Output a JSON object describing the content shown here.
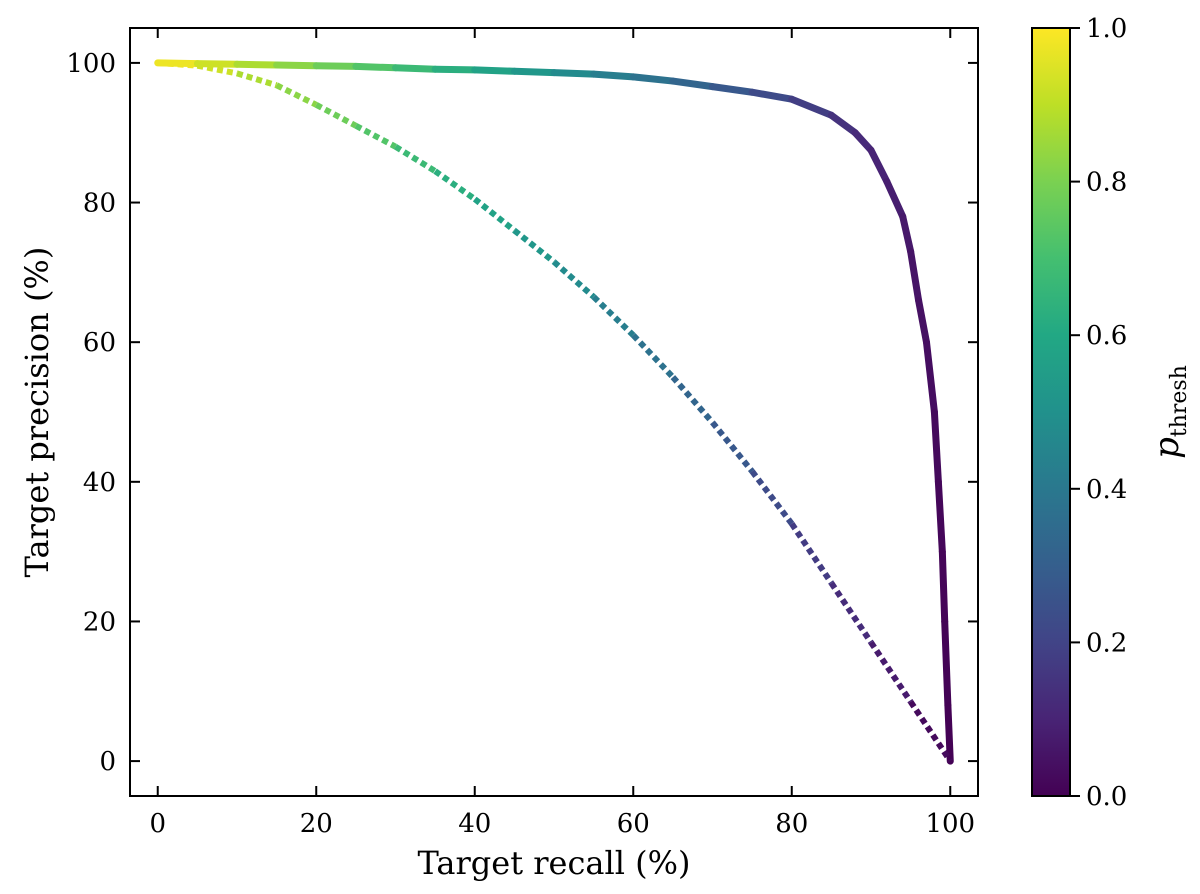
{
  "chart_data": {
    "type": "line",
    "xlabel": "Target recall (%)",
    "ylabel": "Target precision (%)",
    "xlim": [
      -3.5,
      103.5
    ],
    "ylim": [
      -5,
      105
    ],
    "xticks": [
      "0",
      "20",
      "40",
      "60",
      "80",
      "100"
    ],
    "yticks": [
      "0",
      "20",
      "40",
      "60",
      "80",
      "100"
    ],
    "grid": false,
    "colorbar": {
      "label": "p",
      "label_subscript": "thresh",
      "colormap": "viridis",
      "range": [
        0.0,
        1.0
      ],
      "ticks": [
        "0.0",
        "0.2",
        "0.4",
        "0.6",
        "0.8",
        "1.0"
      ]
    },
    "series": [
      {
        "style": "solid",
        "color_by": "threshold",
        "points": [
          {
            "threshold": 1.0,
            "x": 0,
            "y": 100
          },
          {
            "threshold": 0.95,
            "x": 5,
            "y": 99.9
          },
          {
            "threshold": 0.9,
            "x": 10,
            "y": 99.8
          },
          {
            "threshold": 0.85,
            "x": 15,
            "y": 99.7
          },
          {
            "threshold": 0.8,
            "x": 20,
            "y": 99.6
          },
          {
            "threshold": 0.75,
            "x": 25,
            "y": 99.5
          },
          {
            "threshold": 0.7,
            "x": 30,
            "y": 99.3
          },
          {
            "threshold": 0.65,
            "x": 35,
            "y": 99.1
          },
          {
            "threshold": 0.6,
            "x": 40,
            "y": 99.0
          },
          {
            "threshold": 0.55,
            "x": 45,
            "y": 98.8
          },
          {
            "threshold": 0.5,
            "x": 50,
            "y": 98.6
          },
          {
            "threshold": 0.45,
            "x": 55,
            "y": 98.4
          },
          {
            "threshold": 0.4,
            "x": 60,
            "y": 98.0
          },
          {
            "threshold": 0.35,
            "x": 65,
            "y": 97.4
          },
          {
            "threshold": 0.3,
            "x": 70,
            "y": 96.6
          },
          {
            "threshold": 0.25,
            "x": 75,
            "y": 95.8
          },
          {
            "threshold": 0.2,
            "x": 80,
            "y": 94.8
          },
          {
            "threshold": 0.16,
            "x": 85,
            "y": 92.5
          },
          {
            "threshold": 0.13,
            "x": 88,
            "y": 90.0
          },
          {
            "threshold": 0.11,
            "x": 90,
            "y": 87.5
          },
          {
            "threshold": 0.09,
            "x": 92,
            "y": 83.0
          },
          {
            "threshold": 0.075,
            "x": 94,
            "y": 78.0
          },
          {
            "threshold": 0.06,
            "x": 95,
            "y": 73.0
          },
          {
            "threshold": 0.05,
            "x": 96,
            "y": 66.0
          },
          {
            "threshold": 0.04,
            "x": 97,
            "y": 60.0
          },
          {
            "threshold": 0.03,
            "x": 98,
            "y": 50.0
          },
          {
            "threshold": 0.02,
            "x": 98.5,
            "y": 40.0
          },
          {
            "threshold": 0.015,
            "x": 99,
            "y": 30.0
          },
          {
            "threshold": 0.01,
            "x": 99.3,
            "y": 20.0
          },
          {
            "threshold": 0.005,
            "x": 99.7,
            "y": 8.0
          },
          {
            "threshold": 0.0,
            "x": 100,
            "y": 0
          }
        ]
      },
      {
        "style": "dotted",
        "color_by": "threshold",
        "points": [
          {
            "threshold": 1.0,
            "x": 0,
            "y": 100
          },
          {
            "threshold": 0.95,
            "x": 5,
            "y": 99.6
          },
          {
            "threshold": 0.9,
            "x": 10,
            "y": 98.5
          },
          {
            "threshold": 0.85,
            "x": 15,
            "y": 96.8
          },
          {
            "threshold": 0.8,
            "x": 20,
            "y": 94.0
          },
          {
            "threshold": 0.75,
            "x": 25,
            "y": 91.0
          },
          {
            "threshold": 0.7,
            "x": 30,
            "y": 88.0
          },
          {
            "threshold": 0.65,
            "x": 35,
            "y": 84.5
          },
          {
            "threshold": 0.6,
            "x": 40,
            "y": 80.5
          },
          {
            "threshold": 0.55,
            "x": 45,
            "y": 76.0
          },
          {
            "threshold": 0.5,
            "x": 50,
            "y": 71.5
          },
          {
            "threshold": 0.45,
            "x": 55,
            "y": 66.5
          },
          {
            "threshold": 0.4,
            "x": 60,
            "y": 61.0
          },
          {
            "threshold": 0.35,
            "x": 65,
            "y": 55.0
          },
          {
            "threshold": 0.3,
            "x": 70,
            "y": 48.5
          },
          {
            "threshold": 0.25,
            "x": 75,
            "y": 41.5
          },
          {
            "threshold": 0.2,
            "x": 80,
            "y": 34.0
          },
          {
            "threshold": 0.15,
            "x": 85,
            "y": 25.5
          },
          {
            "threshold": 0.1,
            "x": 90,
            "y": 17.0
          },
          {
            "threshold": 0.05,
            "x": 95,
            "y": 8.5
          },
          {
            "threshold": 0.0,
            "x": 100,
            "y": 0
          }
        ]
      }
    ]
  }
}
